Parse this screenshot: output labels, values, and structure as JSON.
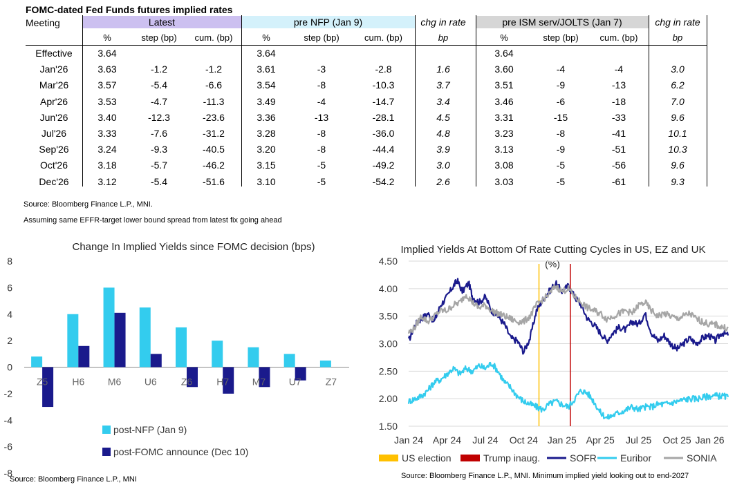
{
  "title": "FOMC-dated Fed Funds futures implied rates",
  "table": {
    "meeting_header": "Meeting",
    "groups": [
      "Latest",
      "pre NFP (Jan 9)",
      "chg in rate",
      "pre ISM serv/JOLTS (Jan 7)",
      "chg in rate"
    ],
    "subheaders": [
      "%",
      "step (bp)",
      "cum. (bp)",
      "%",
      "step (bp)",
      "cum. (bp)",
      "bp",
      "%",
      "step (bp)",
      "cum. (bp)",
      "bp"
    ],
    "colors": {
      "latest": "#ccc0f0",
      "prenfp": "#d4f1fb",
      "preism": "#d6d6d6"
    },
    "rows": [
      [
        "Effective",
        "3.64",
        "",
        "",
        "3.64",
        "",
        "",
        "",
        "3.64",
        "",
        "",
        ""
      ],
      [
        "Jan'26",
        "3.63",
        "-1.2",
        "-1.2",
        "3.61",
        "-3",
        "-2.8",
        "1.6",
        "3.60",
        "-4",
        "-4",
        "3.0"
      ],
      [
        "Mar'26",
        "3.57",
        "-5.4",
        "-6.6",
        "3.54",
        "-8",
        "-10.3",
        "3.7",
        "3.51",
        "-9",
        "-13",
        "6.2"
      ],
      [
        "Apr'26",
        "3.53",
        "-4.7",
        "-11.3",
        "3.49",
        "-4",
        "-14.7",
        "3.4",
        "3.46",
        "-6",
        "-18",
        "7.0"
      ],
      [
        "Jun'26",
        "3.40",
        "-12.3",
        "-23.6",
        "3.36",
        "-13",
        "-28.1",
        "4.5",
        "3.31",
        "-15",
        "-33",
        "9.6"
      ],
      [
        "Jul'26",
        "3.33",
        "-7.6",
        "-31.2",
        "3.28",
        "-8",
        "-36.0",
        "4.8",
        "3.23",
        "-8",
        "-41",
        "10.1"
      ],
      [
        "Sep'26",
        "3.24",
        "-9.3",
        "-40.5",
        "3.20",
        "-8",
        "-44.4",
        "3.9",
        "3.13",
        "-9",
        "-51",
        "10.3"
      ],
      [
        "Oct'26",
        "3.18",
        "-5.7",
        "-46.2",
        "3.15",
        "-5",
        "-49.2",
        "3.0",
        "3.08",
        "-5",
        "-56",
        "9.6"
      ],
      [
        "Dec'26",
        "3.12",
        "-5.4",
        "-51.6",
        "3.10",
        "-5",
        "-54.2",
        "2.6",
        "3.03",
        "-5",
        "-61",
        "9.3"
      ]
    ]
  },
  "notes": {
    "source": "Source: Bloomberg Finance L.P., MNI.",
    "assumption": "Assuming same EFFR-target lower bound spread from latest fix going ahead"
  },
  "chart_data": [
    {
      "type": "bar",
      "title": "Change In Implied Yields since FOMC decision (bps)",
      "categories": [
        "Z5",
        "H6",
        "M6",
        "U6",
        "Z6",
        "H7",
        "M7",
        "U7",
        "Z7"
      ],
      "series": [
        {
          "name": "post-NFP (Jan 9)",
          "color": "#33ccee",
          "values": [
            0.8,
            4.0,
            6.0,
            4.5,
            3.0,
            2.0,
            1.5,
            1.0,
            0.5
          ]
        },
        {
          "name": "post-FOMC announce (Dec 10)",
          "color": "#1a1a8c",
          "values": [
            -3.0,
            1.6,
            4.1,
            1.0,
            -1.5,
            -2.0,
            -1.5,
            -1.0,
            0.0
          ]
        }
      ],
      "ylim": [
        -8,
        8
      ],
      "yticks": [
        "8",
        "6",
        "4",
        "2",
        "0",
        "-2",
        "-4",
        "-6",
        "-8"
      ],
      "source": "Source: Bloomberg Finance L.P., MNI"
    },
    {
      "type": "line",
      "title": "Implied Yields At Bottom Of Rate Cutting Cycles in US, EZ and UK",
      "unit_label": "(%)",
      "ylim": [
        1.5,
        4.5
      ],
      "yticks": [
        "4.50",
        "4.00",
        "3.50",
        "3.00",
        "2.50",
        "2.00",
        "1.50"
      ],
      "x_ticks": [
        "Jan 24",
        "Apr 24",
        "Jul 24",
        "Oct 24",
        "Jan 25",
        "Apr 25",
        "Jul 25",
        "Oct 25",
        "Jan 26"
      ],
      "x_range_months": [
        0,
        25
      ],
      "events": [
        {
          "name": "US election",
          "month": 10.2,
          "color": "#ffc000"
        },
        {
          "name": "Trump inaug.",
          "month": 12.65,
          "color": "#c00000"
        }
      ],
      "series": [
        {
          "name": "SOFR",
          "color": "#1a1a8c",
          "anchors": [
            [
              0,
              3.05
            ],
            [
              0.5,
              3.35
            ],
            [
              1,
              3.45
            ],
            [
              1.5,
              3.55
            ],
            [
              2,
              3.4
            ],
            [
              2.5,
              3.7
            ],
            [
              3,
              3.85
            ],
            [
              3.5,
              4.05
            ],
            [
              3.8,
              4.15
            ],
            [
              4.2,
              3.95
            ],
            [
              4.7,
              4.1
            ],
            [
              5,
              3.85
            ],
            [
              5.5,
              3.75
            ],
            [
              6,
              3.85
            ],
            [
              6.5,
              3.6
            ],
            [
              7,
              3.5
            ],
            [
              7.5,
              3.35
            ],
            [
              8,
              3.1
            ],
            [
              8.5,
              3.05
            ],
            [
              9,
              2.85
            ],
            [
              9.5,
              3.1
            ],
            [
              10,
              3.6
            ],
            [
              10.5,
              3.8
            ],
            [
              11,
              3.95
            ],
            [
              11.5,
              4.1
            ],
            [
              12,
              3.95
            ],
            [
              12.5,
              4.05
            ],
            [
              13,
              3.85
            ],
            [
              13.5,
              3.7
            ],
            [
              14,
              3.45
            ],
            [
              14.5,
              3.35
            ],
            [
              15,
              3.2
            ],
            [
              15.5,
              3.05
            ],
            [
              16,
              3.2
            ],
            [
              16.5,
              3.3
            ],
            [
              17,
              3.25
            ],
            [
              17.5,
              3.4
            ],
            [
              18,
              3.35
            ],
            [
              18.5,
              3.55
            ],
            [
              19,
              3.2
            ],
            [
              19.5,
              3.05
            ],
            [
              20,
              3.15
            ],
            [
              20.5,
              3.0
            ],
            [
              21,
              2.9
            ],
            [
              21.5,
              3.0
            ],
            [
              22,
              3.1
            ],
            [
              22.5,
              3.0
            ],
            [
              23,
              3.1
            ],
            [
              23.5,
              3.15
            ],
            [
              24,
              3.05
            ],
            [
              24.5,
              3.2
            ],
            [
              25,
              3.15
            ]
          ]
        },
        {
          "name": "Euribor",
          "color": "#33ccee",
          "anchors": [
            [
              0,
              1.95
            ],
            [
              0.5,
              2.0
            ],
            [
              1,
              2.05
            ],
            [
              1.5,
              2.15
            ],
            [
              2,
              2.3
            ],
            [
              2.5,
              2.35
            ],
            [
              3,
              2.45
            ],
            [
              3.5,
              2.55
            ],
            [
              4,
              2.45
            ],
            [
              4.5,
              2.55
            ],
            [
              5,
              2.5
            ],
            [
              5.5,
              2.6
            ],
            [
              6,
              2.55
            ],
            [
              6.5,
              2.65
            ],
            [
              7,
              2.5
            ],
            [
              7.5,
              2.3
            ],
            [
              8,
              2.2
            ],
            [
              8.5,
              2.05
            ],
            [
              9,
              1.95
            ],
            [
              9.5,
              1.9
            ],
            [
              10,
              1.85
            ],
            [
              10.5,
              1.8
            ],
            [
              11,
              1.9
            ],
            [
              11.5,
              1.95
            ],
            [
              12,
              1.9
            ],
            [
              12.5,
              1.85
            ],
            [
              13,
              2.0
            ],
            [
              13.5,
              2.15
            ],
            [
              14,
              2.1
            ],
            [
              14.5,
              1.95
            ],
            [
              15,
              1.75
            ],
            [
              15.5,
              1.65
            ],
            [
              16,
              1.7
            ],
            [
              16.5,
              1.75
            ],
            [
              17,
              1.8
            ],
            [
              17.5,
              1.85
            ],
            [
              18,
              1.8
            ],
            [
              18.5,
              1.85
            ],
            [
              19,
              1.85
            ],
            [
              19.5,
              1.9
            ],
            [
              20,
              1.9
            ],
            [
              20.5,
              1.92
            ],
            [
              21,
              1.95
            ],
            [
              21.5,
              1.98
            ],
            [
              22,
              2.0
            ],
            [
              22.5,
              2.0
            ],
            [
              23,
              2.02
            ],
            [
              23.5,
              2.05
            ],
            [
              24,
              2.05
            ],
            [
              24.5,
              2.05
            ],
            [
              25,
              2.03
            ]
          ]
        },
        {
          "name": "SONIA",
          "color": "#a6a6a6",
          "anchors": [
            [
              0,
              3.2
            ],
            [
              0.5,
              3.3
            ],
            [
              1,
              3.5
            ],
            [
              1.5,
              3.4
            ],
            [
              2,
              3.5
            ],
            [
              2.5,
              3.6
            ],
            [
              3,
              3.6
            ],
            [
              3.5,
              3.7
            ],
            [
              4,
              3.75
            ],
            [
              4.5,
              3.9
            ],
            [
              5,
              3.75
            ],
            [
              5.5,
              3.65
            ],
            [
              6,
              3.7
            ],
            [
              6.5,
              3.6
            ],
            [
              7,
              3.55
            ],
            [
              7.5,
              3.5
            ],
            [
              8,
              3.45
            ],
            [
              8.5,
              3.4
            ],
            [
              9,
              3.4
            ],
            [
              9.5,
              3.5
            ],
            [
              10,
              3.7
            ],
            [
              10.5,
              3.8
            ],
            [
              11,
              3.9
            ],
            [
              11.5,
              4.05
            ],
            [
              12,
              3.95
            ],
            [
              12.5,
              4.0
            ],
            [
              13,
              3.85
            ],
            [
              13.5,
              3.75
            ],
            [
              14,
              3.65
            ],
            [
              14.5,
              3.6
            ],
            [
              15,
              3.55
            ],
            [
              15.5,
              3.45
            ],
            [
              16,
              3.5
            ],
            [
              16.5,
              3.55
            ],
            [
              17,
              3.6
            ],
            [
              17.5,
              3.55
            ],
            [
              18,
              3.7
            ],
            [
              18.5,
              3.75
            ],
            [
              19,
              3.6
            ],
            [
              19.5,
              3.5
            ],
            [
              20,
              3.55
            ],
            [
              20.5,
              3.5
            ],
            [
              21,
              3.45
            ],
            [
              21.5,
              3.5
            ],
            [
              22,
              3.55
            ],
            [
              22.5,
              3.45
            ],
            [
              23,
              3.4
            ],
            [
              23.5,
              3.35
            ],
            [
              24,
              3.35
            ],
            [
              24.5,
              3.3
            ],
            [
              25,
              3.28
            ]
          ]
        }
      ],
      "legend": [
        "US election",
        "Trump inaug.",
        "SOFR",
        "Euribor",
        "SONIA"
      ],
      "source": "Source: Bloomberg Finance L.P., MNI. Minimum implied yield looking out to end-2027"
    }
  ]
}
